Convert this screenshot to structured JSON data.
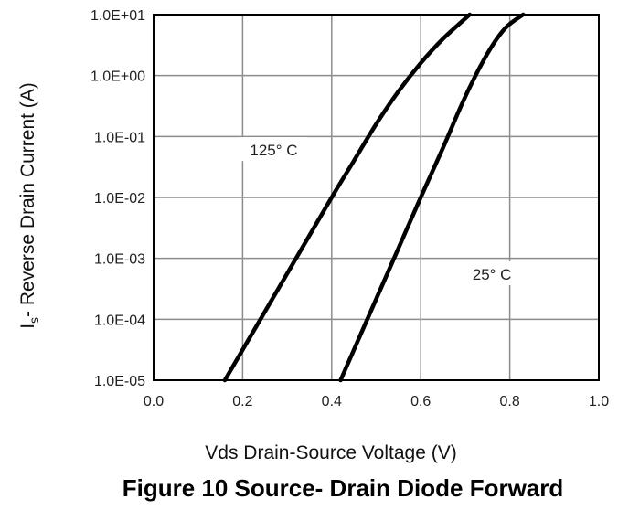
{
  "chart_data": {
    "type": "line",
    "xlabel": "Vds Drain-Source Voltage (V)",
    "ylabel": {
      "main": "I",
      "sub": "s",
      "rest": "- Reverse Drain Current (A)"
    },
    "caption": "Figure 10 Source- Drain Diode Forward",
    "xlim": [
      0.0,
      1.0
    ],
    "ylim": [
      1e-05,
      10
    ],
    "yscale": "log",
    "grid": true,
    "x_ticks": [
      {
        "value": 0.0,
        "label": "0.0"
      },
      {
        "value": 0.2,
        "label": "0.2"
      },
      {
        "value": 0.4,
        "label": "0.4"
      },
      {
        "value": 0.6,
        "label": "0.6"
      },
      {
        "value": 0.8,
        "label": "0.8"
      },
      {
        "value": 1.0,
        "label": "1.0"
      }
    ],
    "y_ticks": [
      {
        "value": 10,
        "label": "1.0E+01"
      },
      {
        "value": 1,
        "label": "1.0E+00"
      },
      {
        "value": 0.1,
        "label": "1.0E-01"
      },
      {
        "value": 0.01,
        "label": "1.0E-02"
      },
      {
        "value": 0.001,
        "label": "1.0E-03"
      },
      {
        "value": 0.0001,
        "label": "1.0E-04"
      },
      {
        "value": 1e-05,
        "label": "1.0E-05"
      }
    ],
    "series": [
      {
        "name": "125° C",
        "x": [
          0.16,
          0.24,
          0.32,
          0.4,
          0.45,
          0.5,
          0.55,
          0.6,
          0.65,
          0.71
        ],
        "y": [
          1e-05,
          0.0001,
          0.001,
          0.01,
          0.04,
          0.16,
          0.55,
          1.6,
          4.0,
          10
        ]
      },
      {
        "name": "25° C",
        "x": [
          0.42,
          0.48,
          0.54,
          0.6,
          0.65,
          0.7,
          0.75,
          0.79,
          0.83
        ],
        "y": [
          1e-05,
          0.0001,
          0.001,
          0.01,
          0.065,
          0.45,
          2.3,
          6.0,
          10
        ]
      }
    ],
    "annotations": [
      {
        "text": "125° C",
        "series": "125° C",
        "anchor": {
          "x": 0.27,
          "y": 0.06
        }
      },
      {
        "text": "25° C",
        "series": "25° C",
        "anchor": {
          "x": 0.76,
          "y": 0.00055
        }
      }
    ],
    "colors": {
      "line": "#000000",
      "grid": "#8c8c8c",
      "axis": "#000000"
    }
  }
}
